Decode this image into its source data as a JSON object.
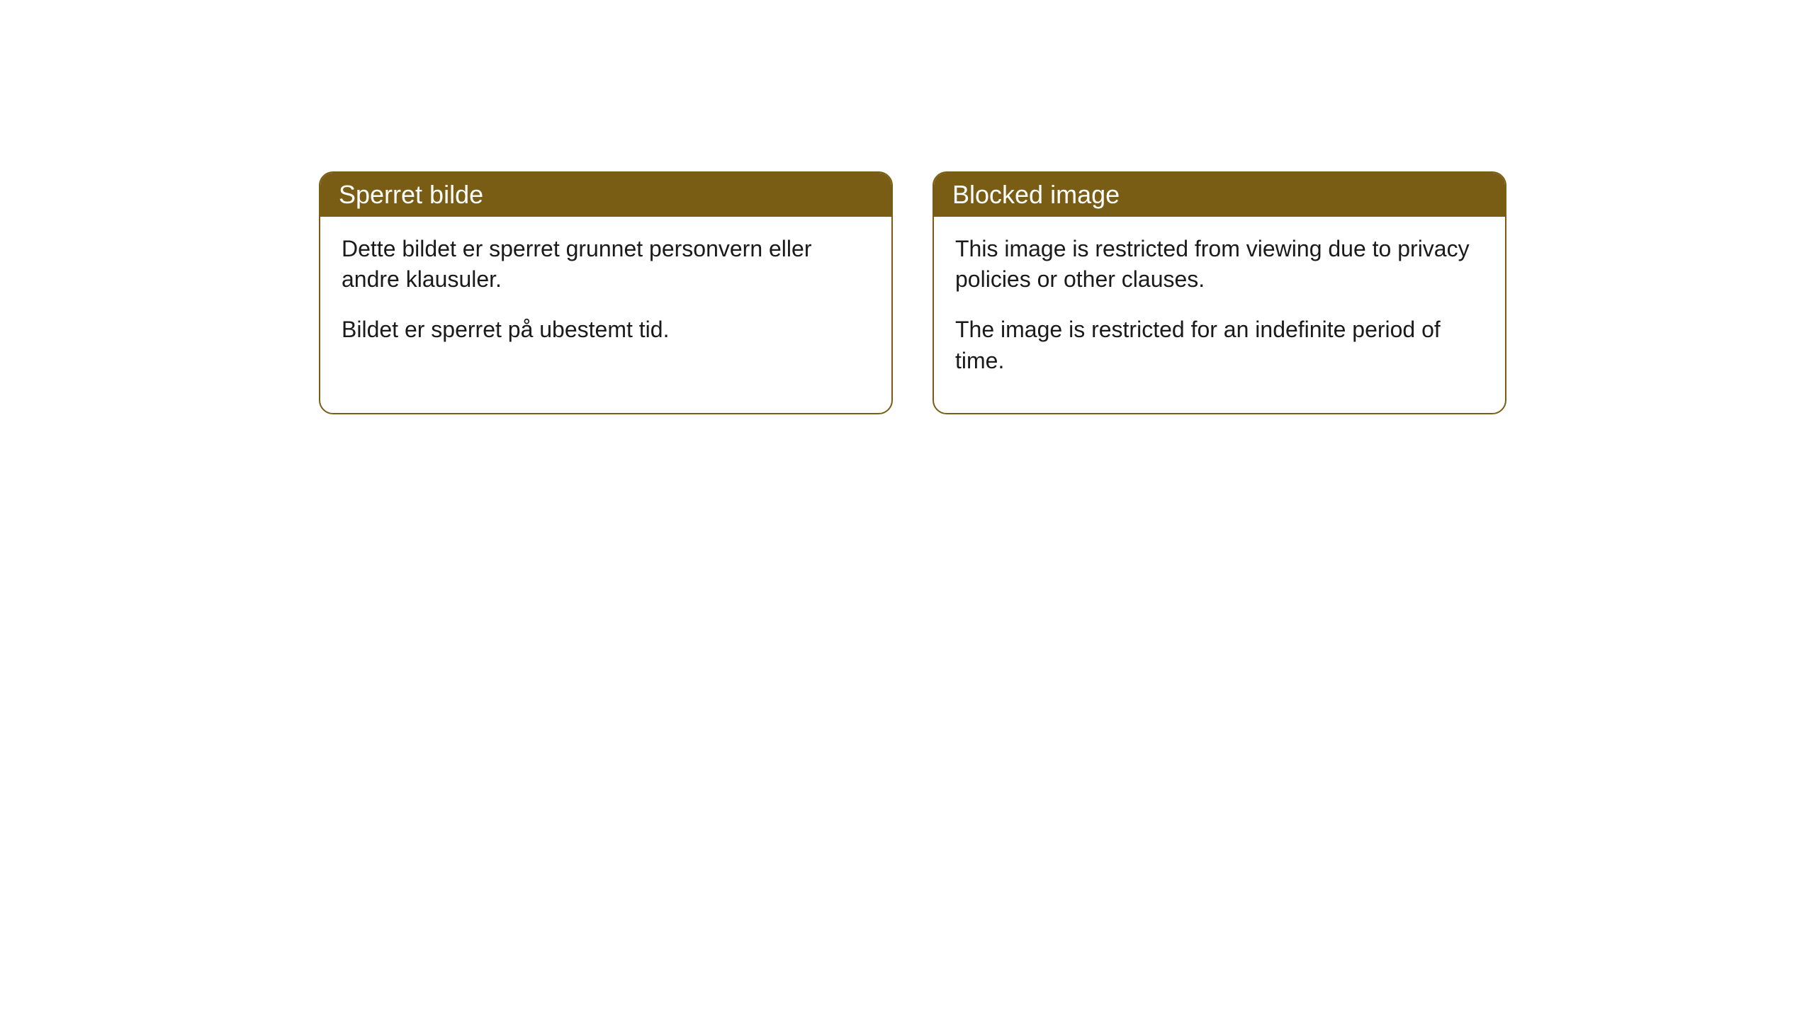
{
  "cards": [
    {
      "title": "Sperret bilde",
      "paragraph1": "Dette bildet er sperret grunnet personvern eller andre klausuler.",
      "paragraph2": "Bildet er sperret på ubestemt tid."
    },
    {
      "title": "Blocked image",
      "paragraph1": "This image is restricted from viewing due to privacy policies or other clauses.",
      "paragraph2": "The image is restricted for an indefinite period of time."
    }
  ],
  "styling": {
    "header_background": "#7a5d14",
    "header_text_color": "#ffffff",
    "border_color": "#7a5d14",
    "body_background": "#ffffff",
    "body_text_color": "#1a1a1a",
    "border_radius": 20,
    "header_fontsize": 36,
    "body_fontsize": 32
  }
}
